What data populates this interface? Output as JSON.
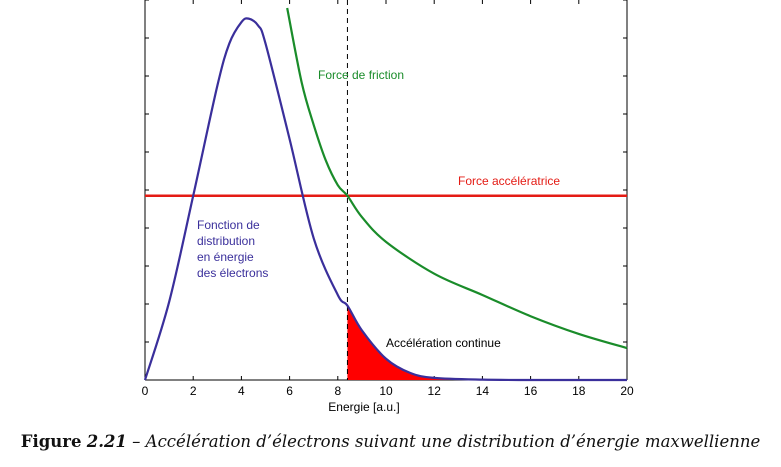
{
  "chart_data": {
    "type": "line",
    "xlabel": "Energie [a.u.]",
    "ylabel": "",
    "xlim": [
      0,
      20
    ],
    "xticks": [
      "0",
      "2",
      "4",
      "6",
      "8",
      "10",
      "12",
      "14",
      "16",
      "18",
      "20"
    ],
    "grid": false,
    "critical_energy": 8.4,
    "series": [
      {
        "name": "Fonction de distribution en énergie des électrons",
        "color": "#3a2f9b",
        "x": [
          0,
          1,
          2,
          3,
          3.5,
          4,
          4.3,
          4.7,
          5,
          6,
          7,
          8,
          8.4,
          9,
          10,
          11,
          12,
          14,
          16,
          20
        ],
        "y": [
          0,
          0.22,
          0.52,
          0.83,
          0.95,
          1.01,
          1.02,
          1.0,
          0.95,
          0.68,
          0.4,
          0.24,
          0.21,
          0.14,
          0.06,
          0.02,
          0.006,
          0.001,
          0,
          0
        ]
      },
      {
        "name": "Force de friction",
        "color": "#1a8c2a",
        "x": [
          5.9,
          6.5,
          7,
          7.5,
          8,
          8.4,
          9,
          10,
          12,
          14,
          16,
          18,
          20
        ],
        "y": [
          1.05,
          0.84,
          0.72,
          0.62,
          0.55,
          0.52,
          0.46,
          0.39,
          0.3,
          0.24,
          0.18,
          0.13,
          0.09
        ]
      },
      {
        "name": "Force accélératrice",
        "color": "#e41b14",
        "x": [
          0,
          20
        ],
        "y": [
          0.52,
          0.52
        ]
      }
    ],
    "annotations": {
      "friction": "Force de friction",
      "acceleration_force": "Force accélératrice",
      "distribution": [
        "Fonction de",
        "distribution",
        "en énergie",
        "des électrons"
      ],
      "continuous": "Accélération continue"
    },
    "fill_color": "#ff0000"
  },
  "caption": {
    "label": "Figure",
    "number": "2.21",
    "text": "– Accélération d’électrons suivant une distribution d’énergie maxwellienne"
  }
}
